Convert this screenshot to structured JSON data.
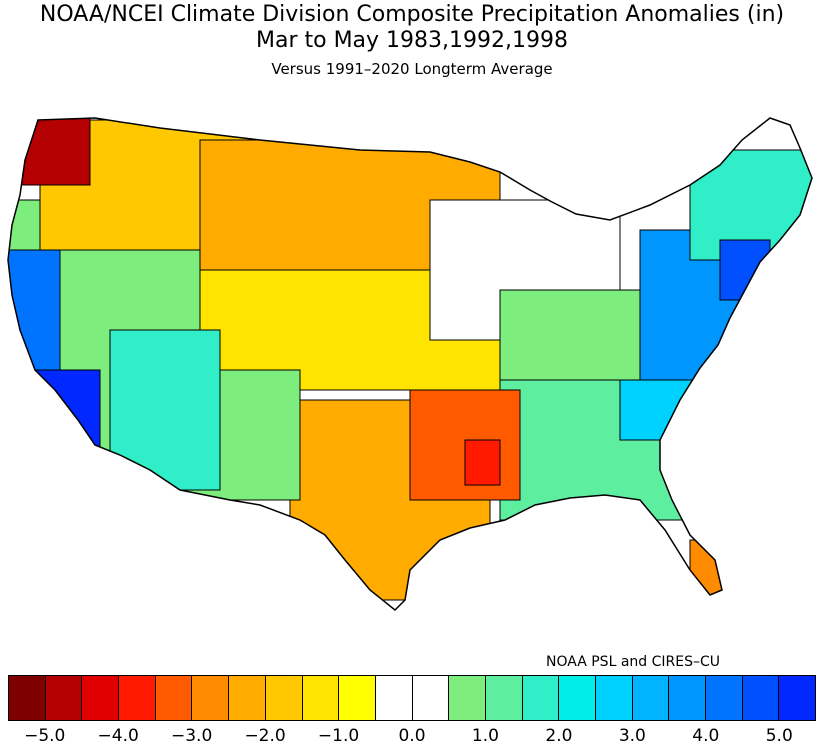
{
  "title": {
    "line1": "NOAA/NCEI Climate Division Composite Precipitation Anomalies (in)",
    "line2": "Mar to May  1983,1992,1998",
    "line3": "Versus 1991–2020 Longterm Average"
  },
  "credit": "NOAA PSL and CIRES–CU",
  "colorbar": {
    "colors": [
      "#7f0000",
      "#b40000",
      "#e00000",
      "#ff1a00",
      "#ff5a00",
      "#ff8c00",
      "#ffab00",
      "#ffc800",
      "#ffe400",
      "#ffff00",
      "#ffffff",
      "#ffffff",
      "#7dee7d",
      "#5deea0",
      "#30eec8",
      "#00eee8",
      "#00d2ff",
      "#00b4ff",
      "#0096ff",
      "#0073ff",
      "#0050ff",
      "#0028ff"
    ],
    "ticks": [
      "−5.0",
      "−4.0",
      "−3.0",
      "−2.0",
      "−1.0",
      "0.0",
      "1.0",
      "2.0",
      "3.0",
      "4.0",
      "5.0"
    ]
  },
  "regions": [
    {
      "name": "Pacific Northwest coast",
      "color": "#b40000"
    },
    {
      "name": "Northern Plains",
      "color": "#ffab00"
    },
    {
      "name": "Northern Rockies",
      "color": "#ffc800"
    },
    {
      "name": "California",
      "color": "#0073ff"
    },
    {
      "name": "Southern California",
      "color": "#0028ff"
    },
    {
      "name": "Great Basin",
      "color": "#7dee7d"
    },
    {
      "name": "Arizona",
      "color": "#30eec8"
    },
    {
      "name": "Southwest",
      "color": "#7dee7d"
    },
    {
      "name": "Central Plains",
      "color": "#ffe400"
    },
    {
      "name": "Texas",
      "color": "#ffab00"
    },
    {
      "name": "Lower Mississippi",
      "color": "#ff5a00"
    },
    {
      "name": "Mid-South core",
      "color": "#ff1a00"
    },
    {
      "name": "Great Lakes",
      "color": "#ffffff"
    },
    {
      "name": "Ohio Valley",
      "color": "#7dee7d"
    },
    {
      "name": "Southeast",
      "color": "#5deea0"
    },
    {
      "name": "Carolinas",
      "color": "#00d2ff"
    },
    {
      "name": "Mid-Atlantic",
      "color": "#0096ff"
    },
    {
      "name": "Northeast coast",
      "color": "#0050ff"
    },
    {
      "name": "New England",
      "color": "#30eec8"
    },
    {
      "name": "South Florida",
      "color": "#ff8c00"
    }
  ]
}
